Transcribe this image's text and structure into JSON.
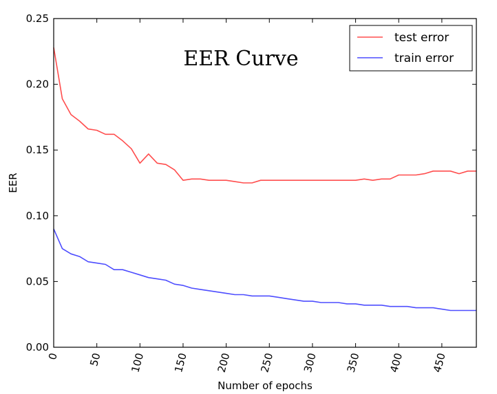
{
  "chart_data": {
    "type": "line",
    "title": "EER Curve",
    "xlabel": "Number of epochs",
    "ylabel": "EER",
    "xlim": [
      0,
      490
    ],
    "ylim": [
      0,
      0.25
    ],
    "xticks": [
      0,
      50,
      100,
      150,
      200,
      250,
      300,
      350,
      400,
      450
    ],
    "xtick_labels": [
      "0",
      "50",
      "100",
      "150",
      "200",
      "250",
      "300",
      "350",
      "400",
      "450"
    ],
    "yticks": [
      0,
      0.05,
      0.1,
      0.15,
      0.2,
      0.25
    ],
    "ytick_labels": [
      "0.00",
      "0.05",
      "0.10",
      "0.15",
      "0.20",
      "0.25"
    ],
    "grid": false,
    "legend_position": "top-right",
    "series": [
      {
        "name": "test error",
        "color": "#ff4d4d",
        "x": [
          0,
          10,
          20,
          30,
          40,
          50,
          60,
          70,
          80,
          90,
          100,
          110,
          120,
          130,
          140,
          150,
          160,
          170,
          180,
          190,
          200,
          210,
          220,
          230,
          240,
          250,
          260,
          270,
          280,
          290,
          300,
          310,
          320,
          330,
          340,
          350,
          360,
          370,
          380,
          390,
          400,
          410,
          420,
          430,
          440,
          450,
          460,
          470,
          480,
          490
        ],
        "y": [
          0.228,
          0.189,
          0.177,
          0.172,
          0.166,
          0.165,
          0.162,
          0.162,
          0.157,
          0.151,
          0.14,
          0.147,
          0.14,
          0.139,
          0.135,
          0.127,
          0.128,
          0.128,
          0.127,
          0.127,
          0.127,
          0.126,
          0.125,
          0.125,
          0.127,
          0.127,
          0.127,
          0.127,
          0.127,
          0.127,
          0.127,
          0.127,
          0.127,
          0.127,
          0.127,
          0.127,
          0.128,
          0.127,
          0.128,
          0.128,
          0.131,
          0.131,
          0.131,
          0.132,
          0.134,
          0.134,
          0.134,
          0.132,
          0.134,
          0.134
        ]
      },
      {
        "name": "train error",
        "color": "#4d4dff",
        "x": [
          0,
          10,
          20,
          30,
          40,
          50,
          60,
          70,
          80,
          90,
          100,
          110,
          120,
          130,
          140,
          150,
          160,
          170,
          180,
          190,
          200,
          210,
          220,
          230,
          240,
          250,
          260,
          270,
          280,
          290,
          300,
          310,
          320,
          330,
          340,
          350,
          360,
          370,
          380,
          390,
          400,
          410,
          420,
          430,
          440,
          450,
          460,
          470,
          480,
          490
        ],
        "y": [
          0.09,
          0.075,
          0.071,
          0.069,
          0.065,
          0.064,
          0.063,
          0.059,
          0.059,
          0.057,
          0.055,
          0.053,
          0.052,
          0.051,
          0.048,
          0.047,
          0.045,
          0.044,
          0.043,
          0.042,
          0.041,
          0.04,
          0.04,
          0.039,
          0.039,
          0.039,
          0.038,
          0.037,
          0.036,
          0.035,
          0.035,
          0.034,
          0.034,
          0.034,
          0.033,
          0.033,
          0.032,
          0.032,
          0.032,
          0.031,
          0.031,
          0.031,
          0.03,
          0.03,
          0.03,
          0.029,
          0.028,
          0.028,
          0.028,
          0.028
        ]
      }
    ]
  }
}
